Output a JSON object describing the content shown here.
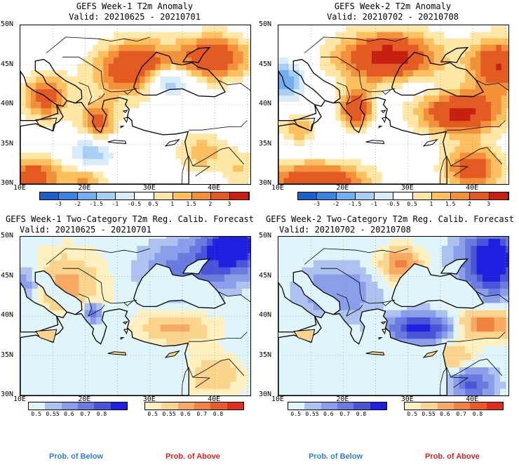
{
  "panels": [
    {
      "title": "GEFS Week-1 T2m Anomaly",
      "valid": "Valid: 20210625 - 20210701",
      "kind": "anomaly"
    },
    {
      "title": "GEFS Week-2 T2m Anomaly",
      "valid": "Valid: 20210702 - 20210708",
      "kind": "anomaly"
    },
    {
      "title": "GEFS Week-1 Two-Category T2m Reg. Calib. Forecast",
      "valid": "Valid: 20210625 - 20210701",
      "kind": "prob"
    },
    {
      "title": "GEFS Week-2 Two-Category T2m Reg. Calib. Forecast",
      "valid": "Valid: 20210702 - 20210708",
      "kind": "prob"
    }
  ],
  "axes": {
    "lat_labels": [
      "50N",
      "45N",
      "40N",
      "35N",
      "30N"
    ],
    "lon_labels": [
      "10E",
      "20E",
      "30E",
      "40E"
    ]
  },
  "anomaly_colorbar": {
    "ticks": [
      "-3",
      "-2",
      "-1.5",
      "-1",
      "-0.5",
      "0.5",
      "1",
      "1.5",
      "2",
      "3"
    ],
    "colors": [
      "#1c5fc9",
      "#3b84e0",
      "#73aef0",
      "#a8d0f5",
      "#d9ecfb",
      "#ffffff",
      "#ffe7a6",
      "#fcc060",
      "#f3903a",
      "#e35a22",
      "#c71f10"
    ]
  },
  "prob_colorbar": {
    "below_ticks": [
      "0.5",
      "0.55",
      "0.6",
      "0.7",
      "0.8"
    ],
    "above_ticks": [
      "0.5",
      "0.55",
      "0.6",
      "0.7",
      "0.8"
    ],
    "below_colors": [
      "#e0f5f9",
      "#aec2f1",
      "#8b9ee9",
      "#6a7be0",
      "#4a54d6",
      "#1f1fe0"
    ],
    "above_colors": [
      "#fff0c0",
      "#fbd48e",
      "#f6aa63",
      "#f08340",
      "#ea5a27",
      "#e02e1a"
    ]
  },
  "legend": {
    "below": "Prob. of Below",
    "above": "Prob. of Above"
  }
}
